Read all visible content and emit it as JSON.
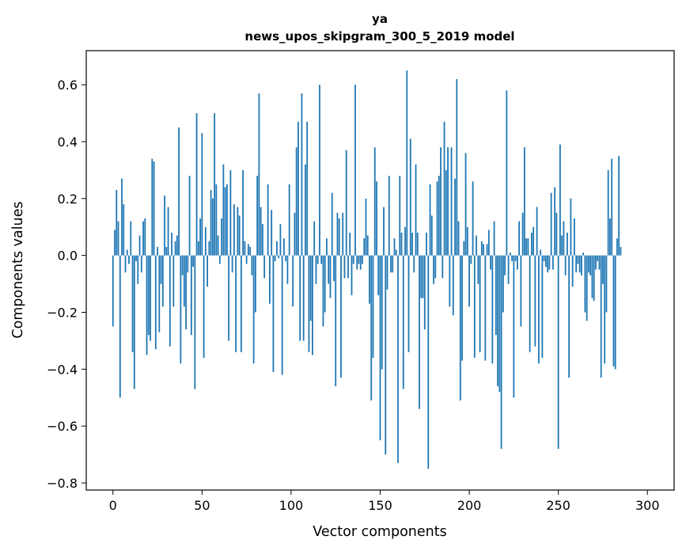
{
  "chart_data": {
    "type": "bar",
    "title": "ya",
    "subtitle": "news_upos_skipgram_300_5_2019 model",
    "xlabel": "Vector components",
    "ylabel": "Components values",
    "xlim": [
      -15,
      315
    ],
    "ylim": [
      -0.825,
      0.72
    ],
    "xticks": [
      0,
      50,
      100,
      150,
      200,
      250,
      300
    ],
    "xtick_labels": [
      "0",
      "50",
      "100",
      "150",
      "200",
      "250",
      "300"
    ],
    "yticks": [
      -0.8,
      -0.6,
      -0.4,
      -0.2,
      0.0,
      0.2,
      0.4,
      0.6
    ],
    "ytick_labels": [
      "−0.8",
      "−0.6",
      "−0.4",
      "−0.2",
      "0.0",
      "0.2",
      "0.4",
      "0.6"
    ],
    "bar_color": "#1f77b4",
    "grid": false,
    "values": [
      -0.25,
      0.09,
      0.23,
      0.12,
      -0.5,
      0.27,
      0.18,
      -0.06,
      0.02,
      -0.03,
      0.12,
      -0.34,
      -0.47,
      -0.02,
      -0.1,
      0.07,
      -0.06,
      0.12,
      0.13,
      -0.35,
      -0.28,
      -0.3,
      0.34,
      0.33,
      -0.33,
      0.03,
      -0.27,
      -0.1,
      -0.18,
      0.21,
      0.03,
      0.17,
      -0.32,
      0.08,
      -0.18,
      0.05,
      0.07,
      0.45,
      -0.38,
      -0.07,
      -0.18,
      -0.26,
      -0.06,
      0.28,
      -0.28,
      -0.04,
      -0.47,
      0.5,
      0.05,
      0.13,
      0.43,
      -0.36,
      0.1,
      -0.11,
      0.05,
      0.23,
      0.2,
      0.5,
      0.25,
      0.07,
      -0.03,
      0.13,
      0.32,
      0.24,
      0.25,
      -0.3,
      0.3,
      -0.06,
      0.18,
      -0.34,
      0.17,
      0.14,
      -0.34,
      0.3,
      0.05,
      -0.03,
      0.04,
      0.03,
      -0.07,
      -0.38,
      -0.2,
      0.28,
      0.57,
      0.17,
      0.11,
      -0.08,
      0.0,
      0.25,
      -0.17,
      0.16,
      -0.41,
      -0.02,
      0.05,
      -0.01,
      0.11,
      -0.42,
      0.06,
      -0.02,
      -0.1,
      0.25,
      0.0,
      -0.18,
      0.15,
      0.38,
      0.47,
      -0.3,
      0.57,
      -0.3,
      0.32,
      0.47,
      -0.34,
      -0.23,
      -0.35,
      0.12,
      -0.1,
      -0.03,
      0.6,
      -0.03,
      -0.25,
      -0.2,
      0.06,
      -0.1,
      -0.15,
      0.22,
      -0.09,
      -0.46,
      0.15,
      0.13,
      -0.43,
      0.15,
      -0.08,
      0.37,
      -0.08,
      0.08,
      -0.14,
      -0.03,
      0.6,
      -0.05,
      -0.03,
      -0.05,
      -0.03,
      0.06,
      0.2,
      0.07,
      -0.17,
      -0.51,
      -0.36,
      0.38,
      0.26,
      -0.14,
      -0.65,
      -0.4,
      0.17,
      -0.7,
      -0.12,
      0.28,
      -0.06,
      -0.06,
      0.06,
      0.02,
      -0.73,
      0.28,
      0.08,
      -0.47,
      0.1,
      0.65,
      -0.34,
      0.41,
      0.08,
      -0.06,
      0.32,
      0.08,
      -0.54,
      -0.15,
      -0.15,
      -0.26,
      0.08,
      -0.75,
      0.25,
      0.14,
      -0.1,
      -0.08,
      0.26,
      0.28,
      0.38,
      -0.08,
      0.47,
      0.3,
      0.38,
      -0.18,
      0.38,
      -0.21,
      0.27,
      0.62,
      0.12,
      -0.51,
      -0.37,
      0.05,
      0.36,
      0.1,
      -0.18,
      -0.03,
      0.26,
      -0.36,
      0.07,
      -0.1,
      -0.34,
      0.05,
      0.04,
      -0.37,
      0.04,
      0.09,
      -0.05,
      -0.38,
      0.12,
      -0.28,
      -0.46,
      -0.48,
      -0.68,
      -0.2,
      -0.07,
      0.58,
      -0.1,
      0.01,
      -0.02,
      -0.5,
      -0.02,
      -0.05,
      0.12,
      -0.25,
      0.15,
      0.38,
      0.06,
      0.06,
      -0.34,
      0.08,
      0.1,
      -0.32,
      0.17,
      -0.38,
      0.02,
      -0.36,
      -0.02,
      -0.04,
      -0.06,
      -0.05,
      0.22,
      -0.05,
      0.24,
      0.15,
      -0.68,
      0.39,
      0.07,
      0.12,
      -0.07,
      0.08,
      -0.43,
      0.2,
      -0.11,
      0.13,
      -0.06,
      -0.03,
      -0.06,
      -0.07,
      0.01,
      -0.2,
      -0.23,
      -0.06,
      -0.07,
      -0.15,
      -0.16,
      -0.05,
      -0.02,
      -0.05,
      -0.43,
      -0.1,
      -0.38,
      -0.2,
      0.3,
      0.13,
      0.34,
      -0.39,
      -0.4,
      0.06,
      0.35,
      0.03
    ]
  }
}
